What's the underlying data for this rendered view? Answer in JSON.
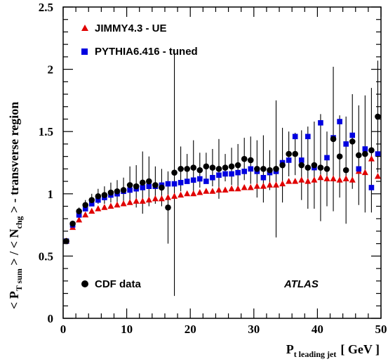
{
  "chart_data": {
    "type": "scatter",
    "title": "",
    "xlim": [
      0,
      50
    ],
    "ylim": [
      0,
      2.5
    ],
    "x_ticks": [
      "0",
      "10",
      "20",
      "30",
      "40",
      "50"
    ],
    "y_ticks": [
      "0",
      "0.5",
      "1",
      "1.5",
      "2",
      "2.5"
    ],
    "xlabel": {
      "main": "P",
      "sub": "t leading jet",
      "unit": "[ GeV ]"
    },
    "ylabel": {
      "p1": "< P",
      "p1_sub": "T sum",
      "p2": " > / < N",
      "p2_sub": "chg",
      "p3": " > - transverse region"
    },
    "legend_position": "top-left",
    "annotation": "ATLAS",
    "series": [
      {
        "name": "JIMMY4.3 - UE",
        "marker": "triangle",
        "color": "#e00000",
        "x": [
          0.5,
          1.5,
          2.5,
          3.5,
          4.5,
          5.5,
          6.5,
          7.5,
          8.5,
          9.5,
          10.5,
          11.5,
          12.5,
          13.5,
          14.5,
          15.5,
          16.5,
          17.5,
          18.5,
          19.5,
          20.5,
          21.5,
          22.5,
          23.5,
          24.5,
          25.5,
          26.5,
          27.5,
          28.5,
          29.5,
          30.5,
          31.5,
          32.5,
          33.5,
          34.5,
          35.5,
          36.5,
          37.5,
          38.5,
          39.5,
          40.5,
          41.5,
          42.5,
          43.5,
          44.5,
          45.5,
          46.5,
          47.5,
          48.5,
          49.5
        ],
        "y": [
          0.62,
          0.73,
          0.79,
          0.83,
          0.86,
          0.88,
          0.89,
          0.9,
          0.91,
          0.92,
          0.93,
          0.94,
          0.94,
          0.95,
          0.96,
          0.96,
          0.97,
          0.98,
          0.99,
          1.0,
          1.0,
          1.01,
          1.02,
          1.02,
          1.03,
          1.03,
          1.04,
          1.04,
          1.05,
          1.05,
          1.06,
          1.06,
          1.07,
          1.07,
          1.08,
          1.1,
          1.1,
          1.11,
          1.1,
          1.11,
          1.13,
          1.12,
          1.12,
          1.11,
          1.12,
          1.11,
          1.18,
          1.17,
          1.28,
          1.14
        ]
      },
      {
        "name": "PYTHIA6.416 - tuned",
        "marker": "square",
        "color": "#0000e0",
        "x": [
          0.5,
          1.5,
          2.5,
          3.5,
          4.5,
          5.5,
          6.5,
          7.5,
          8.5,
          9.5,
          10.5,
          11.5,
          12.5,
          13.5,
          14.5,
          15.5,
          16.5,
          17.5,
          18.5,
          19.5,
          20.5,
          21.5,
          22.5,
          23.5,
          24.5,
          25.5,
          26.5,
          27.5,
          28.5,
          29.5,
          30.5,
          31.5,
          32.5,
          33.5,
          34.5,
          35.5,
          36.5,
          37.5,
          38.5,
          39.5,
          40.5,
          41.5,
          42.5,
          43.5,
          44.5,
          45.5,
          46.5,
          47.5,
          48.5,
          49.5
        ],
        "y": [
          0.62,
          0.75,
          0.83,
          0.88,
          0.92,
          0.95,
          0.97,
          0.99,
          1.0,
          1.02,
          1.03,
          1.04,
          1.05,
          1.06,
          1.06,
          1.07,
          1.08,
          1.08,
          1.09,
          1.1,
          1.11,
          1.12,
          1.1,
          1.13,
          1.15,
          1.16,
          1.16,
          1.17,
          1.18,
          1.2,
          1.18,
          1.13,
          1.17,
          1.18,
          1.25,
          1.27,
          1.46,
          1.27,
          1.46,
          1.21,
          1.57,
          1.29,
          1.45,
          1.58,
          1.4,
          1.47,
          1.2,
          1.36,
          1.05,
          1.32
        ]
      },
      {
        "name": "CDF data",
        "marker": "circle",
        "color": "#000000",
        "x": [
          0.5,
          1.5,
          2.5,
          3.5,
          4.5,
          5.5,
          6.5,
          7.5,
          8.5,
          9.5,
          10.5,
          11.5,
          12.5,
          13.5,
          14.5,
          15.5,
          16.5,
          17.5,
          18.5,
          19.5,
          20.5,
          21.5,
          22.5,
          23.5,
          24.5,
          25.5,
          26.5,
          27.5,
          28.5,
          29.5,
          30.5,
          31.5,
          32.5,
          33.5,
          34.5,
          35.5,
          36.5,
          37.5,
          38.5,
          39.5,
          40.5,
          41.5,
          42.5,
          43.5,
          44.5,
          45.5,
          46.5,
          47.5,
          48.5,
          49.5
        ],
        "y": [
          0.62,
          0.76,
          0.86,
          0.91,
          0.95,
          0.98,
          0.99,
          1.01,
          1.02,
          1.03,
          1.07,
          1.06,
          1.09,
          1.1,
          1.07,
          1.05,
          0.89,
          1.17,
          1.2,
          1.2,
          1.21,
          1.19,
          1.22,
          1.21,
          1.2,
          1.21,
          1.22,
          1.23,
          1.28,
          1.27,
          1.2,
          1.2,
          1.19,
          1.2,
          1.23,
          1.32,
          1.32,
          1.23,
          1.21,
          1.23,
          1.21,
          1.2,
          1.44,
          1.3,
          1.19,
          1.42,
          1.31,
          1.32,
          1.35,
          1.62
        ],
        "err": [
          0.01,
          0.02,
          0.03,
          0.04,
          0.05,
          0.06,
          0.07,
          0.08,
          0.09,
          0.1,
          0.15,
          0.17,
          0.25,
          0.2,
          0.15,
          0.15,
          0.29,
          0.99,
          0.18,
          0.12,
          0.22,
          0.14,
          0.11,
          0.15,
          0.24,
          0.11,
          0.15,
          0.17,
          0.17,
          0.19,
          0.23,
          0.27,
          0.16,
          0.55,
          0.3,
          0.18,
          0.17,
          0.28,
          0.33,
          0.35,
          0.43,
          0.3,
          0.58,
          0.33,
          0.43,
          0.38,
          0.4,
          0.47,
          0.5,
          0.45
        ]
      }
    ]
  }
}
